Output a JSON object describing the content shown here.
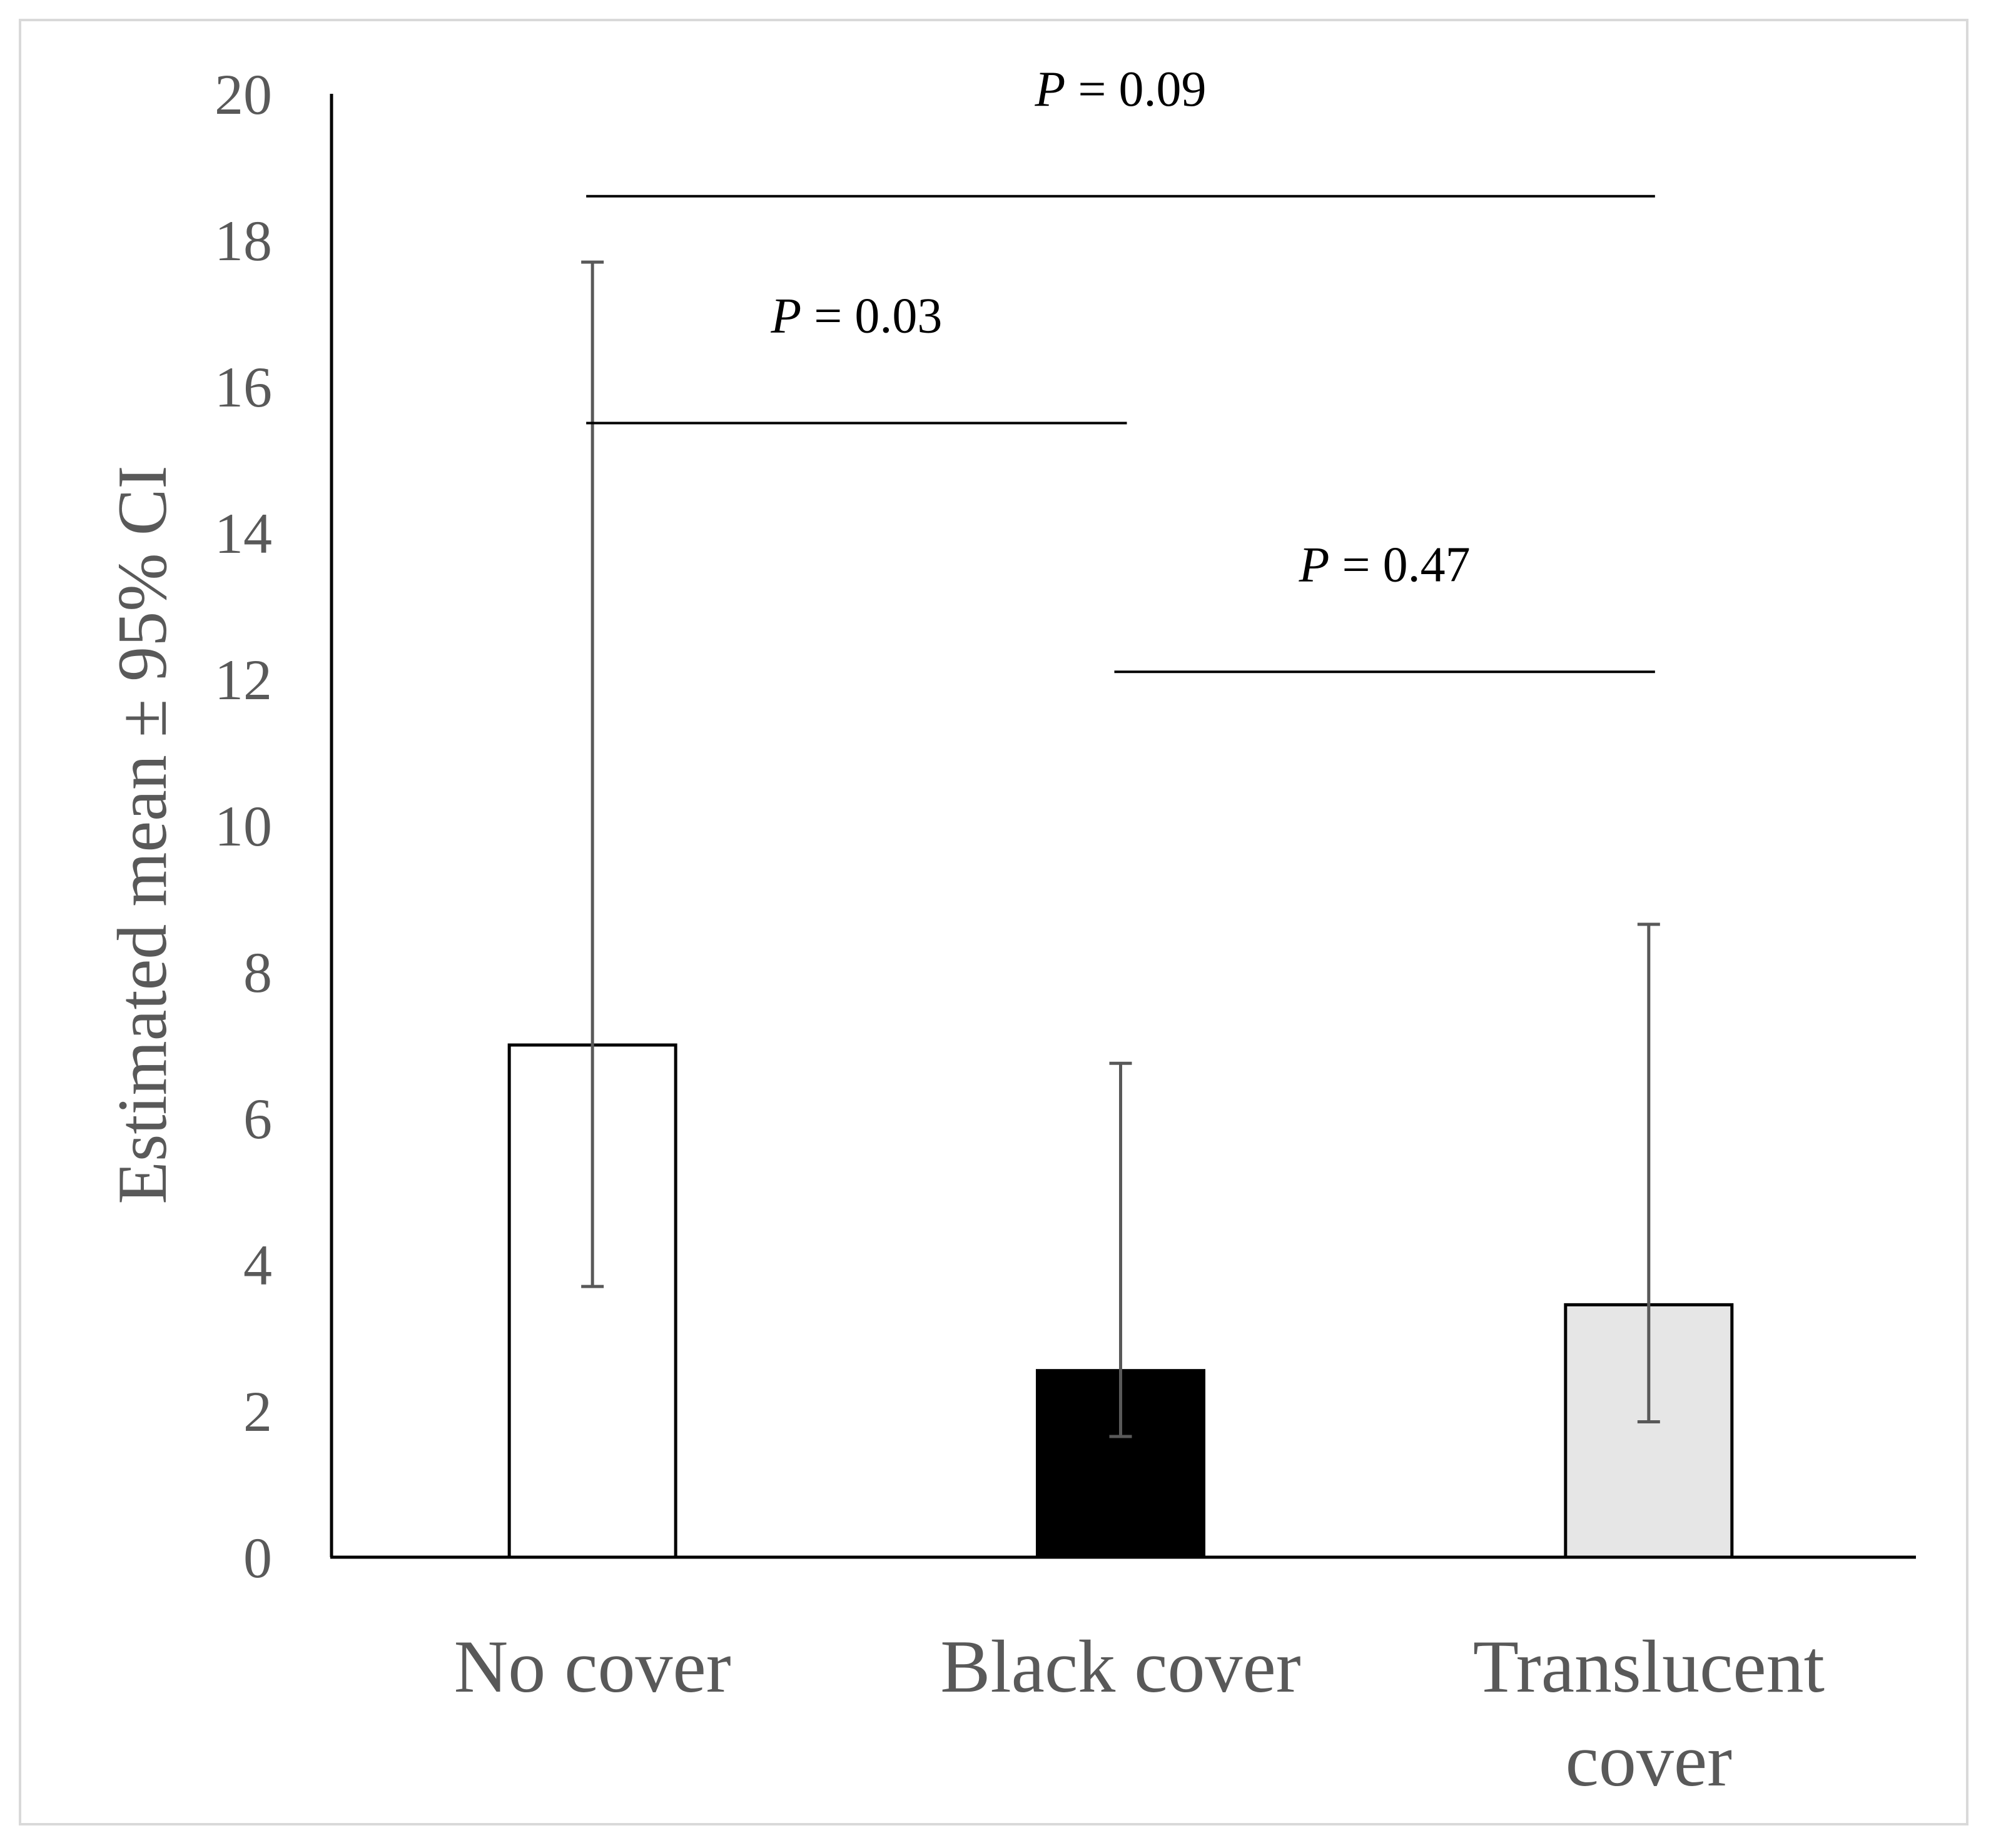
{
  "chart_data": {
    "type": "bar",
    "title": "",
    "xlabel": "",
    "ylabel": "Estimated mean ± 95% CI",
    "ylim": [
      0,
      20
    ],
    "yticks": [
      0,
      2,
      4,
      6,
      8,
      10,
      12,
      14,
      16,
      18,
      20
    ],
    "grid": false,
    "legend": "none",
    "categories": [
      {
        "label_lines": [
          "No cover"
        ]
      },
      {
        "label_lines": [
          "Black cover"
        ]
      },
      {
        "label_lines": [
          "Translucent",
          "cover"
        ]
      }
    ],
    "series": [
      {
        "values": [
          7.0,
          2.55,
          3.45
        ],
        "ci_lower": [
          3.7,
          1.65,
          1.85
        ],
        "ci_upper": [
          17.7,
          6.75,
          8.65
        ],
        "colors": [
          "#ffffff",
          "#000000",
          "#e6e6e6"
        ]
      }
    ],
    "annotations": [
      {
        "text": "= 0.09",
        "italic_prefix": "P",
        "from": 0,
        "to": 2,
        "y": 18.6
      },
      {
        "text": "= 0.03",
        "italic_prefix": "P",
        "from": 0,
        "to": 1,
        "y": 15.5
      },
      {
        "text": "= 0.47",
        "italic_prefix": "P",
        "from": 1,
        "to": 2,
        "y": 12.1
      }
    ],
    "colors": {
      "axis": "#000000",
      "bar_edge": "#000000",
      "error_bar": "#595959",
      "text": "#595959",
      "frame": "#d9d9d9"
    }
  }
}
